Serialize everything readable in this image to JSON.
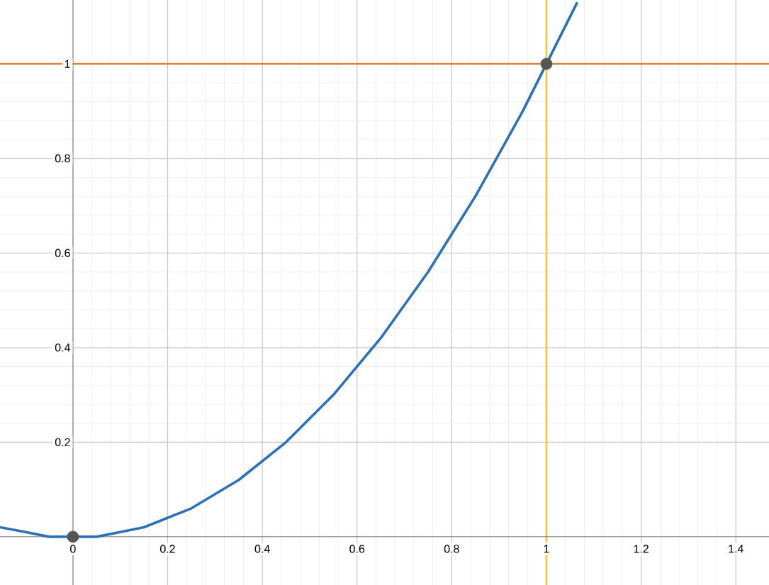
{
  "chart_data": {
    "type": "line",
    "xlim": [
      -0.154,
      1.47
    ],
    "ylim": [
      -0.102,
      1.135
    ],
    "xticks": [
      0,
      0.2,
      0.4,
      0.6,
      0.8,
      1,
      1.2,
      1.4
    ],
    "yticks": [
      0.2,
      0.4,
      0.6,
      0.8,
      1
    ],
    "grid": true,
    "series": [
      {
        "type": "line",
        "color": "#2d70b3",
        "marker": "none",
        "x": [
          -0.154,
          -0.1,
          -0.05,
          0,
          0.05,
          0.1,
          0.15,
          0.2,
          0.25,
          0.3,
          0.35,
          0.4,
          0.45,
          0.5,
          0.55,
          0.6,
          0.65,
          0.7,
          0.75,
          0.8,
          0.85,
          0.9,
          0.95,
          1,
          1.05,
          1.065
        ],
        "values": [
          0.02,
          0.01,
          0,
          0,
          0,
          0.01,
          0.02,
          0.04,
          0.06,
          0.09,
          0.12,
          0.16,
          0.2,
          0.25,
          0.3,
          0.36,
          0.42,
          0.49,
          0.56,
          0.64,
          0.72,
          0.81,
          0.9,
          1,
          1.1,
          1.13
        ]
      },
      {
        "type": "scatter",
        "color": "#555555",
        "marker": "circle",
        "x": [
          0,
          1
        ],
        "values": [
          0,
          1
        ]
      }
    ],
    "ref_lines": [
      {
        "axis": "y",
        "value": 1,
        "color": "#e8803a"
      },
      {
        "axis": "x",
        "value": 1,
        "color": "#f2c744"
      }
    ]
  }
}
